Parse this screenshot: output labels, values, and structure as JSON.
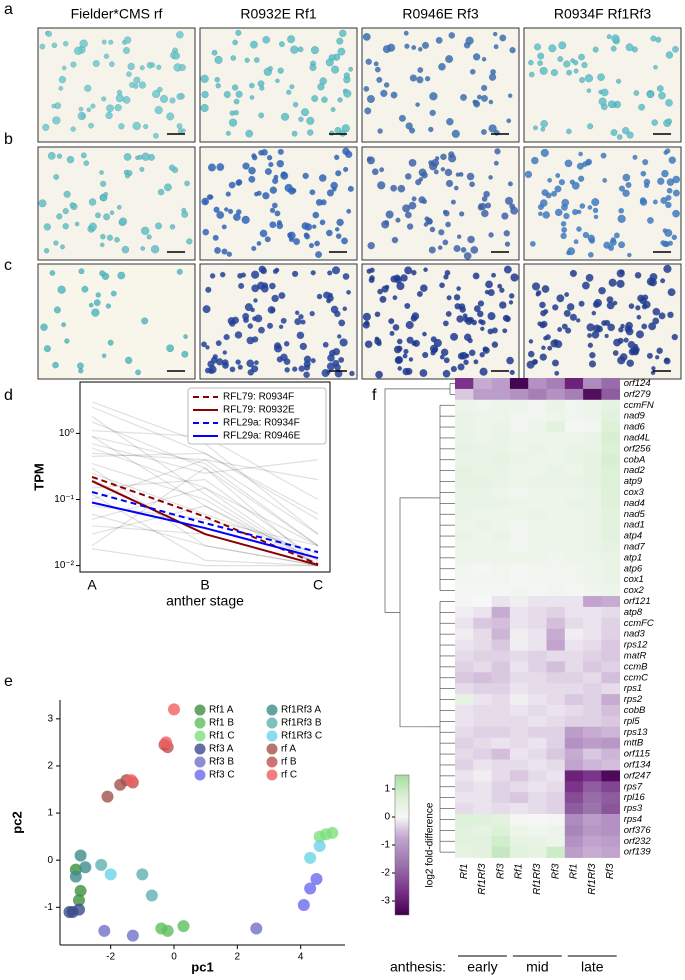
{
  "panel_labels": [
    "a",
    "b",
    "c",
    "d",
    "e",
    "f"
  ],
  "micrographs": {
    "headers": [
      "Fielder*CMS rf",
      "R0932E Rf1",
      "R0946E Rf3",
      "R0934F Rf1Rf3"
    ]
  },
  "chart_data": [
    {
      "type": "line",
      "xlabel": "anther stage",
      "ylabel": "TPM",
      "categories": [
        "A",
        "B",
        "C"
      ],
      "log_y": true,
      "ylim": [
        0.008,
        6
      ],
      "yticks": [
        {
          "value": 0.01,
          "label": "10⁻²"
        },
        {
          "value": 0.1,
          "label": "10⁻¹"
        },
        {
          "value": 1,
          "label": "10⁰"
        }
      ],
      "legend": "upper right",
      "background_color": "#000000",
      "background": [
        [
          1.5,
          0.3,
          0.02
        ],
        [
          0.9,
          0.08,
          0.01
        ],
        [
          0.5,
          0.4,
          0.03
        ],
        [
          0.3,
          0.02,
          0.01
        ],
        [
          2.5,
          0.5,
          0.05
        ],
        [
          0.15,
          0.2,
          0.012
        ],
        [
          0.08,
          0.05,
          0.02
        ],
        [
          0.04,
          0.03,
          0.01
        ],
        [
          0.6,
          0.15,
          0.01
        ],
        [
          1.1,
          0.9,
          0.1
        ],
        [
          0.25,
          0.06,
          0.015
        ],
        [
          0.02,
          0.3,
          0.01
        ],
        [
          0.12,
          0.012,
          0.01
        ],
        [
          3.0,
          0.7,
          0.03
        ],
        [
          0.7,
          0.25,
          0.4
        ],
        [
          0.35,
          0.1,
          0.01
        ],
        [
          0.05,
          0.15,
          0.02
        ],
        [
          0.018,
          0.01,
          0.01
        ],
        [
          0.45,
          0.5,
          0.06
        ],
        [
          0.2,
          0.03,
          0.01
        ],
        [
          1.8,
          0.12,
          0.01
        ],
        [
          0.1,
          0.4,
          0.2
        ],
        [
          0.03,
          0.08,
          0.012
        ],
        [
          0.9,
          0.35,
          0.02
        ],
        [
          0.06,
          0.02,
          0.01
        ]
      ],
      "series": [
        {
          "name": "RFL79: R0934F",
          "color": "#8b0000",
          "dashed": true,
          "values": [
            0.22,
            0.055,
            0.0105
          ]
        },
        {
          "name": "RFL79: R0932E",
          "color": "#8b0000",
          "dashed": false,
          "values": [
            0.19,
            0.03,
            0.0102
          ]
        },
        {
          "name": "RFL29a: R0934F",
          "color": "#0000ff",
          "dashed": true,
          "values": [
            0.13,
            0.044,
            0.016
          ]
        },
        {
          "name": "RFL29a: R0946E",
          "color": "#0000ff",
          "dashed": false,
          "values": [
            0.09,
            0.037,
            0.013
          ]
        }
      ]
    },
    {
      "type": "scatter",
      "xlabel": "pc1",
      "ylabel": "pc2",
      "xlim": [
        -3.6,
        5.4
      ],
      "ylim": [
        -1.8,
        3.4
      ],
      "xticks": [
        -2,
        0,
        2,
        4
      ],
      "yticks": [
        -1,
        0,
        1,
        2,
        3
      ],
      "legend": "upper right",
      "series": [
        {
          "name": "Rf1 A",
          "color": "#3f8f3f",
          "x": [
            -3.0,
            -2.95,
            -3.1
          ],
          "y": [
            -0.85,
            -0.65,
            -0.2
          ]
        },
        {
          "name": "Rf1 B",
          "color": "#5cbf5c",
          "x": [
            -0.4,
            -0.2,
            0.3
          ],
          "y": [
            -1.45,
            -1.5,
            -1.4
          ]
        },
        {
          "name": "Rf1 C",
          "color": "#7ee07e",
          "x": [
            4.6,
            4.8,
            5.0
          ],
          "y": [
            0.5,
            0.55,
            0.58
          ]
        },
        {
          "name": "Rf3 A",
          "color": "#3c4a8c",
          "x": [
            -3.3,
            -3.2,
            -3.0
          ],
          "y": [
            -1.1,
            -1.1,
            -1.05
          ]
        },
        {
          "name": "Rf3 B",
          "color": "#7070c8",
          "x": [
            -2.2,
            -1.3,
            2.6
          ],
          "y": [
            -1.5,
            -1.6,
            -1.45
          ]
        },
        {
          "name": "Rf3 C",
          "color": "#6a6af0",
          "x": [
            4.1,
            4.3,
            4.5
          ],
          "y": [
            -0.95,
            -0.6,
            -0.4
          ]
        },
        {
          "name": "Rf1Rf3 A",
          "color": "#3f8c8c",
          "x": [
            -2.95,
            -2.8,
            -3.1
          ],
          "y": [
            0.1,
            -0.15,
            -0.35
          ]
        },
        {
          "name": "Rf1Rf3 B",
          "color": "#5fb0b0",
          "x": [
            -2.3,
            -1.0,
            -0.7
          ],
          "y": [
            -0.1,
            -0.3,
            -0.75
          ]
        },
        {
          "name": "Rf1Rf3 C",
          "color": "#6ad3e6",
          "x": [
            -2.0,
            4.3,
            4.6
          ],
          "y": [
            -0.3,
            0.05,
            0.3
          ]
        },
        {
          "name": "rf A",
          "color": "#a0524a",
          "x": [
            -2.1,
            -1.7,
            -1.5
          ],
          "y": [
            1.35,
            1.6,
            1.7
          ]
        },
        {
          "name": "rf B",
          "color": "#c0504d",
          "x": [
            -1.3,
            -0.3,
            -0.2
          ],
          "y": [
            1.65,
            2.45,
            2.4
          ]
        },
        {
          "name": "rf C",
          "color": "#f06060",
          "x": [
            -1.35,
            0.0,
            -0.25
          ],
          "y": [
            1.7,
            3.2,
            2.5
          ]
        }
      ]
    },
    {
      "type": "heatmap",
      "colormap": "PRGn",
      "clim": [
        -3.5,
        1.5
      ],
      "colorbar_label": "log2 fold-difference",
      "colorbar_ticks": [
        -3,
        -2,
        -1,
        0,
        1
      ],
      "group_title": "anthesis:",
      "groups": [
        "early",
        "mid",
        "late"
      ],
      "columns": [
        "Rf1",
        "Rf1Rf3",
        "Rf3",
        "Rf1",
        "Rf1Rf3",
        "Rf3",
        "Rf1",
        "Rf1Rf3",
        "Rf3"
      ],
      "rows": [
        "orf124",
        "orf279",
        "ccmFN",
        "nad9",
        "nad6",
        "nad4L",
        "orf256",
        "cobA",
        "nad2",
        "atp9",
        "cox3",
        "nad4",
        "nad5",
        "nad1",
        "atp4",
        "nad7",
        "atp1",
        "atp6",
        "cox1",
        "cox2",
        "orf121",
        "atp8",
        "ccmFC",
        "nad3",
        "rps12",
        "matR",
        "ccmB",
        "ccmC",
        "rps1",
        "rps2",
        "cobB",
        "rpl5",
        "rps13",
        "mttB",
        "orf115",
        "orf134",
        "orf247",
        "rps7",
        "rpl16",
        "rps3",
        "rps4",
        "orf376",
        "orf232",
        "orf139"
      ],
      "values": [
        [
          -2.5,
          -0.8,
          -1.0,
          -3.4,
          -1.2,
          -1.5,
          -2.8,
          -1.3,
          -1.8
        ],
        [
          -0.5,
          -1.0,
          -1.0,
          -1.2,
          -1.5,
          -1.2,
          -1.5,
          -3.2,
          -2.0
        ],
        [
          0.3,
          0.2,
          0.3,
          0.3,
          0.2,
          0.4,
          0.2,
          0.3,
          0.5
        ],
        [
          0.4,
          0.3,
          0.3,
          0.2,
          0.2,
          0.3,
          0.2,
          0.3,
          0.6
        ],
        [
          0.4,
          0.3,
          0.4,
          0.2,
          0.3,
          0.6,
          0.1,
          0.2,
          0.8
        ],
        [
          0.4,
          0.3,
          0.4,
          0.3,
          0.3,
          0.3,
          0.3,
          0.4,
          0.9
        ],
        [
          0.5,
          0.4,
          0.4,
          0.3,
          0.4,
          0.3,
          0.4,
          0.4,
          0.8
        ],
        [
          0.4,
          0.4,
          0.5,
          0.4,
          0.3,
          0.3,
          0.4,
          0.5,
          0.9
        ],
        [
          0.5,
          0.4,
          0.4,
          0.3,
          0.3,
          0.4,
          0.3,
          0.5,
          0.8
        ],
        [
          0.5,
          0.5,
          0.4,
          0.3,
          0.4,
          0.4,
          0.4,
          0.5,
          0.8
        ],
        [
          0.4,
          0.4,
          0.3,
          0.2,
          0.3,
          0.3,
          0.3,
          0.4,
          0.7
        ],
        [
          0.4,
          0.4,
          0.4,
          0.3,
          0.3,
          0.3,
          0.4,
          0.4,
          0.7
        ],
        [
          0.4,
          0.3,
          0.3,
          0.3,
          0.4,
          0.3,
          0.3,
          0.4,
          0.6
        ],
        [
          0.3,
          0.4,
          0.3,
          0.2,
          0.3,
          0.3,
          0.3,
          0.4,
          0.6
        ],
        [
          0.4,
          0.3,
          0.4,
          0.2,
          0.3,
          0.3,
          0.3,
          0.4,
          0.6
        ],
        [
          0.3,
          0.3,
          0.3,
          0.2,
          0.3,
          0.3,
          0.3,
          0.4,
          0.5
        ],
        [
          0.3,
          0.3,
          0.3,
          0.3,
          0.3,
          0.2,
          0.3,
          0.3,
          0.4
        ],
        [
          0.2,
          0.1,
          0.2,
          0.1,
          0.2,
          0.2,
          0.2,
          0.3,
          0.4
        ],
        [
          0.2,
          0.2,
          0.2,
          0.1,
          0.2,
          0.2,
          0.2,
          0.3,
          0.4
        ],
        [
          0.1,
          0.1,
          0.1,
          0.2,
          0.1,
          0.2,
          0.1,
          0.2,
          0.3
        ],
        [
          0.1,
          0.0,
          -0.2,
          -0.1,
          -0.2,
          -0.2,
          -0.2,
          -0.9,
          -0.8
        ],
        [
          -0.1,
          -0.2,
          -0.8,
          -0.2,
          -0.3,
          -0.4,
          -0.2,
          -0.2,
          -0.3
        ],
        [
          -0.2,
          -0.5,
          -0.6,
          -0.2,
          -0.3,
          -0.6,
          -0.3,
          -0.2,
          -0.4
        ],
        [
          -0.1,
          -0.3,
          -0.7,
          -0.1,
          -0.2,
          -0.8,
          -0.1,
          -0.2,
          -0.4
        ],
        [
          -0.2,
          -0.3,
          -0.5,
          -0.1,
          -0.2,
          -0.9,
          -0.2,
          -0.3,
          -0.5
        ],
        [
          -0.3,
          -0.4,
          -0.4,
          -0.3,
          -0.4,
          -0.3,
          -0.3,
          -0.4,
          -0.5
        ],
        [
          -0.4,
          -0.3,
          -0.5,
          -0.2,
          -0.4,
          -0.6,
          -0.3,
          -0.5,
          -0.4
        ],
        [
          -0.5,
          -0.6,
          -0.5,
          -0.3,
          -0.3,
          -0.4,
          -0.4,
          -0.3,
          -0.6
        ],
        [
          -0.3,
          -0.4,
          -0.4,
          -0.2,
          -0.3,
          -0.3,
          -0.3,
          -0.4,
          -0.3
        ],
        [
          0.5,
          -0.2,
          -0.3,
          -0.1,
          -0.2,
          -0.3,
          -0.5,
          -0.4,
          -0.8
        ],
        [
          -0.2,
          -0.3,
          -0.3,
          -0.2,
          -0.3,
          -0.2,
          -0.3,
          -0.4,
          -0.6
        ],
        [
          -0.2,
          -0.3,
          -0.3,
          -0.3,
          -0.2,
          -0.3,
          -0.4,
          -0.4,
          -0.5
        ],
        [
          -0.3,
          -0.4,
          -0.4,
          -0.3,
          -0.4,
          -0.4,
          -1.0,
          -0.8,
          -0.7
        ],
        [
          -0.4,
          -0.3,
          -0.2,
          -0.3,
          -0.2,
          -0.4,
          -1.2,
          -1.0,
          -1.1
        ],
        [
          -0.3,
          -0.4,
          -0.6,
          -0.2,
          -0.3,
          -0.5,
          -0.8,
          -0.5,
          -0.7
        ],
        [
          -0.4,
          -0.2,
          -0.3,
          -0.3,
          -0.2,
          -0.3,
          -0.9,
          -0.7,
          -0.6
        ],
        [
          -0.2,
          -0.1,
          -0.3,
          -0.5,
          -0.3,
          -0.2,
          -2.8,
          -2.5,
          -3.3
        ],
        [
          -0.3,
          -0.2,
          -0.4,
          -0.3,
          -0.2,
          -0.3,
          -2.5,
          -2.0,
          -2.3
        ],
        [
          -0.2,
          -0.2,
          -0.4,
          -0.5,
          -0.3,
          -0.4,
          -2.2,
          -1.8,
          -2.0
        ],
        [
          -0.3,
          -0.2,
          -0.3,
          -0.2,
          -0.3,
          -0.4,
          -2.0,
          -1.7,
          -2.1
        ],
        [
          0.8,
          0.7,
          0.6,
          0.1,
          0.0,
          0.1,
          -1.3,
          -1.0,
          -1.2
        ],
        [
          0.6,
          0.5,
          0.8,
          0.3,
          0.2,
          0.3,
          -1.4,
          -1.1,
          -1.2
        ],
        [
          0.6,
          0.6,
          1.0,
          0.5,
          0.4,
          0.3,
          -1.2,
          -0.9,
          -1.0
        ],
        [
          0.5,
          0.6,
          1.2,
          0.6,
          0.5,
          1.1,
          -1.0,
          -0.8,
          -0.9
        ]
      ]
    }
  ]
}
